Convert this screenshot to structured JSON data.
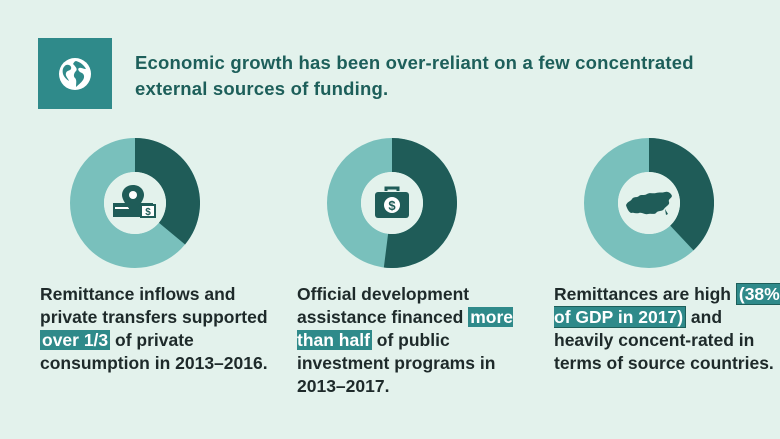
{
  "header": {
    "icon": "globe-icon",
    "headline": "Economic growth has been over-reliant on a few concentrated external sources of funding."
  },
  "colors": {
    "background": "#e3f2ec",
    "teal_dark": "#1d5f5a",
    "teal_segment": "#1f5c58",
    "teal_light": "#79c0bc",
    "teal_accent": "#2f8a8a",
    "text": "#1e2a2a"
  },
  "panels": [
    {
      "icon": "money-location-icon",
      "share": 0.36,
      "caption_parts": [
        {
          "text": "Remittance inflows and private transfers supported ",
          "highlight": false
        },
        {
          "text": "over 1/3",
          "highlight": true
        },
        {
          "text": " of private consumption in 2013–2016.",
          "highlight": false
        }
      ]
    },
    {
      "icon": "briefcase-dollar-icon",
      "share": 0.52,
      "caption_parts": [
        {
          "text": "Official development assistance financed ",
          "highlight": false
        },
        {
          "text": "more than half",
          "highlight": true
        },
        {
          "text": " of public investment programs in 2013–2017.",
          "highlight": false
        }
      ]
    },
    {
      "icon": "russia-map-icon",
      "share": 0.38,
      "caption_parts": [
        {
          "text": "Remittances are high ",
          "highlight": false
        },
        {
          "text": "(38% of GDP in 2017)",
          "highlight": true
        },
        {
          "text": " and heavily concent-rated in terms of source countries.",
          "highlight": false
        }
      ]
    }
  ]
}
